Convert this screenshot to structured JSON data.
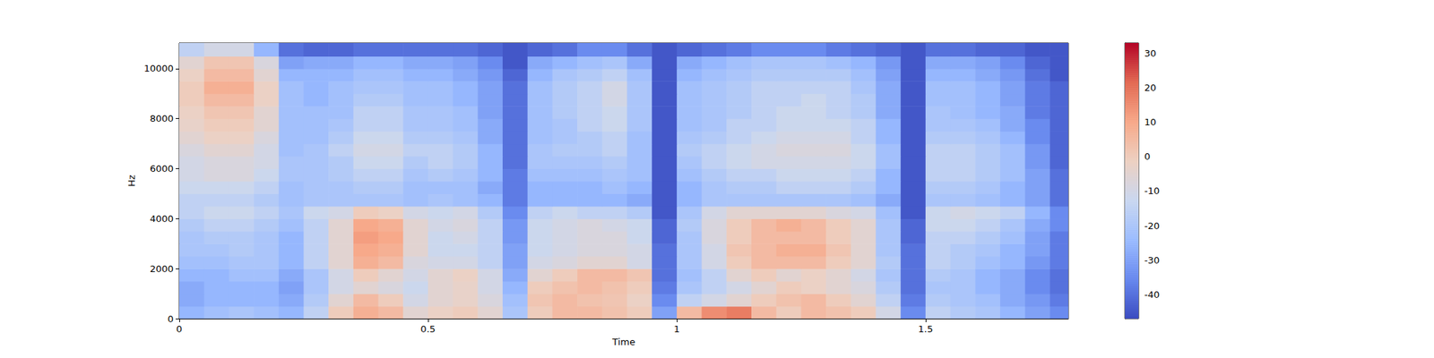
{
  "chart_data": {
    "type": "heatmap",
    "x_label": "Time",
    "y_label": "Hz",
    "xlim": [
      0,
      1.787
    ],
    "ylim": [
      0,
      11025
    ],
    "xticks": [
      0,
      0.5,
      1,
      1.5
    ],
    "yticks": [
      0,
      2000,
      4000,
      6000,
      8000,
      10000
    ],
    "grid": false,
    "x": [
      0,
      0.05,
      0.1,
      0.15,
      0.2,
      0.25,
      0.3,
      0.35,
      0.4,
      0.45,
      0.5,
      0.55,
      0.6,
      0.65,
      0.7,
      0.75,
      0.8,
      0.85,
      0.9,
      0.95,
      1.0,
      1.05,
      1.1,
      1.15,
      1.2,
      1.25,
      1.3,
      1.35,
      1.4,
      1.45,
      1.5,
      1.55,
      1.6,
      1.65,
      1.7,
      1.75
    ],
    "y": [
      0,
      500,
      1000,
      1500,
      2000,
      2500,
      3000,
      3500,
      4000,
      4500,
      5000,
      5500,
      6000,
      6500,
      7000,
      7500,
      8000,
      8500,
      9000,
      9500,
      10000,
      10500
    ],
    "values": [
      [
        -25,
        -22,
        -20,
        -22,
        -25,
        -15,
        0,
        8,
        5,
        -5,
        -2,
        0,
        -5,
        -20,
        0,
        5,
        5,
        3,
        0,
        -30,
        5,
        15,
        18,
        5,
        0,
        5,
        3,
        0,
        -10,
        -35,
        -15,
        -18,
        -20,
        -25,
        -30,
        -35
      ],
      [
        -28,
        -25,
        -25,
        -25,
        -28,
        -18,
        -5,
        5,
        0,
        -10,
        -5,
        -3,
        -8,
        -22,
        2,
        5,
        3,
        2,
        -2,
        -35,
        -15,
        -10,
        -5,
        0,
        3,
        5,
        0,
        -5,
        -15,
        -38,
        -18,
        -20,
        -22,
        -28,
        -32,
        -38
      ],
      [
        -28,
        -25,
        -25,
        -25,
        -30,
        -20,
        -10,
        -5,
        -8,
        -12,
        -5,
        -3,
        -10,
        -25,
        0,
        3,
        5,
        3,
        0,
        -38,
        -20,
        -15,
        -10,
        -5,
        0,
        -2,
        -5,
        -8,
        -18,
        -40,
        -20,
        -20,
        -25,
        -28,
        -35,
        -40
      ],
      [
        -25,
        -25,
        -22,
        -22,
        -28,
        -20,
        -10,
        0,
        -5,
        -10,
        -5,
        -2,
        -10,
        -28,
        -5,
        0,
        5,
        5,
        2,
        -40,
        -22,
        -15,
        -5,
        0,
        -5,
        -2,
        -5,
        -10,
        -20,
        -40,
        -18,
        -20,
        -25,
        -28,
        -35,
        -40
      ],
      [
        -22,
        -22,
        -20,
        -20,
        -25,
        -15,
        -5,
        8,
        5,
        -8,
        -10,
        -10,
        -15,
        -30,
        -10,
        -8,
        -5,
        -5,
        -10,
        -40,
        -20,
        -10,
        0,
        5,
        5,
        5,
        0,
        -5,
        -18,
        -40,
        -15,
        -18,
        -22,
        -25,
        -32,
        -38
      ],
      [
        -20,
        -20,
        -18,
        -20,
        -25,
        -15,
        -5,
        10,
        8,
        -5,
        -12,
        -12,
        -15,
        -30,
        -12,
        -10,
        -8,
        -8,
        -10,
        -40,
        -20,
        -10,
        2,
        5,
        8,
        8,
        2,
        -5,
        -20,
        -40,
        -15,
        -18,
        -20,
        -25,
        -30,
        -38
      ],
      [
        -20,
        -18,
        -18,
        -20,
        -25,
        -15,
        -5,
        12,
        10,
        -5,
        -12,
        -10,
        -15,
        -32,
        -12,
        -10,
        -8,
        -8,
        -12,
        -42,
        -20,
        -8,
        0,
        5,
        5,
        5,
        0,
        -5,
        -20,
        -42,
        -15,
        -15,
        -18,
        -22,
        -30,
        -38
      ],
      [
        -18,
        -15,
        -15,
        -18,
        -22,
        -15,
        -5,
        10,
        8,
        -5,
        -10,
        -8,
        -15,
        -32,
        -12,
        -10,
        -8,
        -10,
        -12,
        -42,
        -18,
        -8,
        0,
        5,
        8,
        5,
        0,
        -5,
        -20,
        -42,
        -12,
        -12,
        -15,
        -20,
        -28,
        -35
      ],
      [
        -15,
        -12,
        -12,
        -15,
        -20,
        -12,
        -10,
        0,
        -2,
        -10,
        -12,
        -10,
        -18,
        -35,
        -15,
        -12,
        -15,
        -15,
        -18,
        -45,
        -20,
        -10,
        -5,
        -5,
        -5,
        -5,
        -8,
        -10,
        -22,
        -45,
        -12,
        -10,
        -12,
        -15,
        -25,
        -35
      ],
      [
        -15,
        -15,
        -15,
        -18,
        -22,
        -20,
        -20,
        -20,
        -20,
        -22,
        -20,
        -22,
        -25,
        -38,
        -25,
        -25,
        -25,
        -25,
        -28,
        -45,
        -25,
        -20,
        -20,
        -20,
        -20,
        -20,
        -20,
        -22,
        -28,
        -45,
        -20,
        -20,
        -22,
        -25,
        -30,
        -40
      ],
      [
        -12,
        -12,
        -12,
        -15,
        -22,
        -20,
        -20,
        -18,
        -18,
        -22,
        -22,
        -22,
        -28,
        -38,
        -25,
        -25,
        -25,
        -22,
        -25,
        -45,
        -25,
        -20,
        -18,
        -18,
        -15,
        -15,
        -15,
        -18,
        -25,
        -45,
        -18,
        -18,
        -20,
        -25,
        -30,
        -40
      ],
      [
        -10,
        -8,
        -8,
        -12,
        -20,
        -20,
        -18,
        -15,
        -15,
        -20,
        -18,
        -20,
        -25,
        -38,
        -22,
        -22,
        -22,
        -20,
        -22,
        -45,
        -22,
        -18,
        -15,
        -15,
        -12,
        -12,
        -12,
        -15,
        -25,
        -45,
        -15,
        -15,
        -18,
        -22,
        -30,
        -40
      ],
      [
        -10,
        -8,
        -8,
        -10,
        -20,
        -20,
        -18,
        -12,
        -12,
        -18,
        -15,
        -18,
        -25,
        -40,
        -20,
        -20,
        -20,
        -18,
        -22,
        -45,
        -20,
        -15,
        -12,
        -10,
        -10,
        -10,
        -10,
        -12,
        -22,
        -45,
        -15,
        -15,
        -18,
        -22,
        -32,
        -42
      ],
      [
        -8,
        -5,
        -5,
        -10,
        -22,
        -20,
        -15,
        -10,
        -10,
        -15,
        -15,
        -18,
        -25,
        -40,
        -20,
        -18,
        -18,
        -15,
        -22,
        -45,
        -18,
        -15,
        -12,
        -10,
        -8,
        -8,
        -8,
        -12,
        -22,
        -45,
        -15,
        -15,
        -18,
        -22,
        -32,
        -42
      ],
      [
        -5,
        -2,
        -2,
        -8,
        -22,
        -22,
        -18,
        -12,
        -12,
        -18,
        -18,
        -20,
        -28,
        -40,
        -22,
        -20,
        -18,
        -15,
        -22,
        -45,
        -20,
        -18,
        -15,
        -12,
        -10,
        -10,
        -10,
        -15,
        -25,
        -45,
        -18,
        -18,
        -20,
        -25,
        -35,
        -42
      ],
      [
        -3,
        0,
        0,
        -5,
        -22,
        -22,
        -20,
        -15,
        -15,
        -20,
        -20,
        -22,
        -28,
        -40,
        -22,
        -20,
        -15,
        -12,
        -20,
        -45,
        -22,
        -20,
        -15,
        -15,
        -12,
        -12,
        -12,
        -15,
        -25,
        -45,
        -20,
        -20,
        -22,
        -28,
        -35,
        -42
      ],
      [
        -2,
        2,
        2,
        -5,
        -22,
        -22,
        -22,
        -15,
        -15,
        -20,
        -20,
        -22,
        -30,
        -40,
        -22,
        -18,
        -15,
        -12,
        -20,
        -45,
        -22,
        -20,
        -18,
        -15,
        -12,
        -12,
        -15,
        -18,
        -28,
        -45,
        -20,
        -22,
        -25,
        -28,
        -38,
        -42
      ],
      [
        0,
        5,
        5,
        -2,
        -22,
        -25,
        -22,
        -18,
        -18,
        -22,
        -22,
        -25,
        -30,
        -40,
        -22,
        -18,
        -15,
        -10,
        -20,
        -45,
        -22,
        -20,
        -18,
        -15,
        -15,
        -12,
        -15,
        -18,
        -28,
        -45,
        -22,
        -22,
        -25,
        -30,
        -38,
        -42
      ],
      [
        0,
        8,
        8,
        -2,
        -22,
        -25,
        -22,
        -20,
        -20,
        -22,
        -22,
        -25,
        -30,
        -40,
        -22,
        -18,
        -15,
        -10,
        -20,
        -45,
        -22,
        -20,
        -18,
        -15,
        -15,
        -15,
        -15,
        -20,
        -28,
        -45,
        -22,
        -22,
        -25,
        -30,
        -38,
        -42
      ],
      [
        -2,
        5,
        5,
        -5,
        -25,
        -25,
        -25,
        -22,
        -22,
        -25,
        -25,
        -28,
        -32,
        -42,
        -25,
        -20,
        -18,
        -15,
        -22,
        -45,
        -25,
        -22,
        -20,
        -18,
        -18,
        -18,
        -18,
        -22,
        -30,
        -45,
        -25,
        -25,
        -28,
        -32,
        -40,
        -45
      ],
      [
        -5,
        2,
        2,
        -8,
        -30,
        -28,
        -28,
        -25,
        -25,
        -28,
        -28,
        -30,
        -35,
        -45,
        -28,
        -25,
        -22,
        -20,
        -28,
        -45,
        -28,
        -25,
        -22,
        -20,
        -20,
        -20,
        -22,
        -25,
        -32,
        -45,
        -28,
        -28,
        -30,
        -35,
        -42,
        -45
      ],
      [
        -15,
        -10,
        -10,
        -25,
        -40,
        -42,
        -42,
        -40,
        -40,
        -40,
        -40,
        -40,
        -42,
        -45,
        -42,
        -40,
        -35,
        -35,
        -40,
        -45,
        -42,
        -40,
        -38,
        -35,
        -35,
        -35,
        -38,
        -40,
        -42,
        -45,
        -40,
        -40,
        -42,
        -42,
        -45,
        -45
      ]
    ],
    "colorbar": {
      "range": [
        -47,
        33
      ],
      "ticks": [
        -40,
        -30,
        -20,
        -10,
        0,
        10,
        20,
        30
      ]
    }
  }
}
